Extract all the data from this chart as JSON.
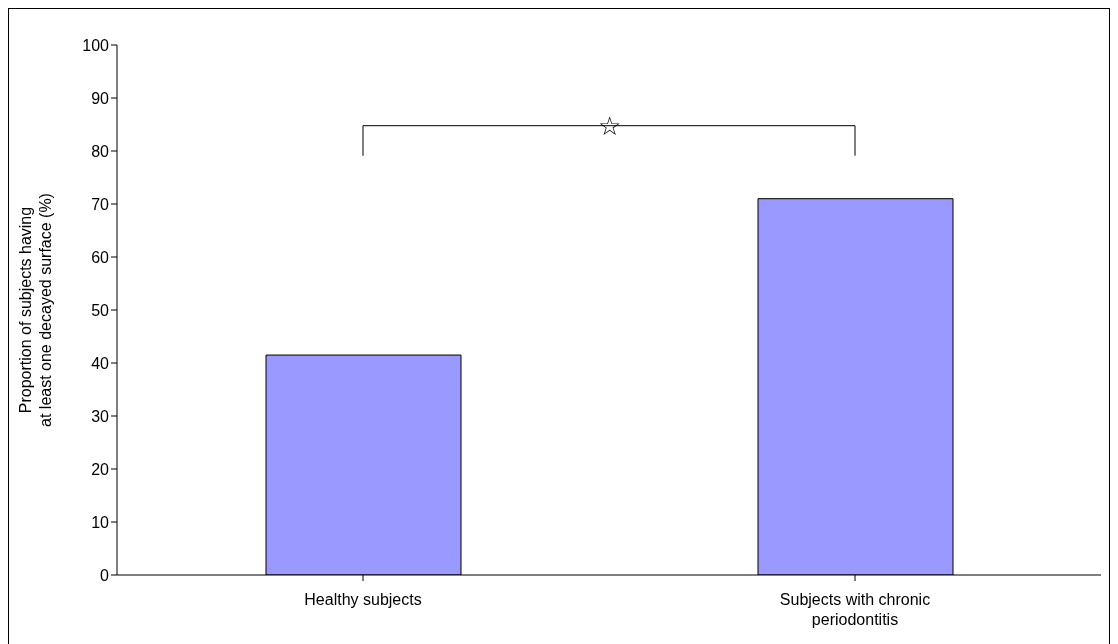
{
  "chart_data": {
    "type": "bar",
    "categories": [
      "Healthy subjects",
      "Subjects with chronic periodontitis"
    ],
    "values": [
      41.5,
      71
    ],
    "color": "#9999ff",
    "ylabel": "Proportion of subjects having at least one decayed surface (%)",
    "ylim": [
      0,
      100
    ],
    "yticks": [
      0,
      10,
      20,
      30,
      40,
      50,
      60,
      70,
      80,
      90,
      100
    ],
    "grid": false,
    "legend": false,
    "annotations": [
      "☆"
    ]
  }
}
